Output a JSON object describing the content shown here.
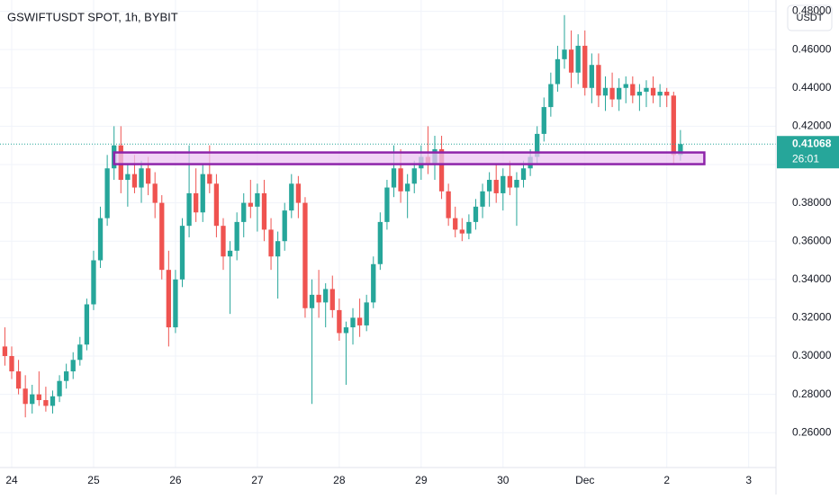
{
  "chart_data": {
    "type": "candlestick",
    "title": "GSWIFTUSDT SPOT, 1h, BYBIT",
    "currency": "USDT",
    "countdown": "26:01",
    "up_color": "#26a69a",
    "down_color": "#ef5350",
    "grid": true,
    "xlim": [
      -3.43,
      224.0
    ],
    "xticks": [
      {
        "value": 0,
        "label": "24"
      },
      {
        "value": 24,
        "label": "25"
      },
      {
        "value": 48,
        "label": "26"
      },
      {
        "value": 72,
        "label": "27"
      },
      {
        "value": 96,
        "label": "28"
      },
      {
        "value": 120,
        "label": "29"
      },
      {
        "value": 144,
        "label": "30"
      },
      {
        "value": 168,
        "label": "Dec"
      },
      {
        "value": 192,
        "label": "2"
      },
      {
        "value": 216,
        "label": "3"
      }
    ],
    "ylim": [
      0.2418,
      0.4859
    ],
    "yticks": [
      {
        "value": 0.26,
        "label": "0.26000"
      },
      {
        "value": 0.28,
        "label": "0.28000"
      },
      {
        "value": 0.3,
        "label": "0.30000"
      },
      {
        "value": 0.32,
        "label": "0.32000"
      },
      {
        "value": 0.34,
        "label": "0.34000"
      },
      {
        "value": 0.36,
        "label": "0.36000"
      },
      {
        "value": 0.38,
        "label": "0.38000"
      },
      {
        "value": 0.4,
        "label": "0.40000"
      },
      {
        "value": 0.42,
        "label": "0.42000"
      },
      {
        "value": 0.44,
        "label": "0.44000"
      },
      {
        "value": 0.46,
        "label": "0.46000"
      },
      {
        "value": 0.48,
        "label": "0.48000"
      }
    ],
    "zone": {
      "low": 0.4002,
      "high": 0.4063,
      "start": 30,
      "end": 203,
      "fill": "#ecc6f2",
      "stroke": "#8e24aa"
    },
    "x": [
      -2,
      0,
      2,
      4,
      6,
      8,
      10,
      12,
      14,
      16,
      18,
      20,
      22,
      24,
      26,
      28,
      30,
      32,
      34,
      36,
      38,
      40,
      42,
      44,
      46,
      48,
      50,
      52,
      54,
      56,
      58,
      60,
      62,
      64,
      66,
      68,
      70,
      72,
      74,
      76,
      78,
      80,
      82,
      84,
      86,
      88,
      90,
      92,
      94,
      96,
      98,
      100,
      102,
      104,
      106,
      108,
      110,
      112,
      114,
      116,
      118,
      120,
      122,
      124,
      126,
      128,
      130,
      132,
      134,
      136,
      138,
      140,
      142,
      144,
      146,
      148,
      150,
      152,
      154,
      156,
      158,
      160,
      162,
      164,
      166,
      168,
      170,
      172,
      174,
      176,
      178,
      180,
      182,
      184,
      186,
      188,
      190,
      192,
      194,
      196
    ],
    "open": [
      0.305,
      0.3,
      0.292,
      0.283,
      0.275,
      0.28,
      0.277,
      0.274,
      0.279,
      0.287,
      0.292,
      0.298,
      0.306,
      0.327,
      0.35,
      0.372,
      0.398,
      0.41,
      0.392,
      0.395,
      0.388,
      0.398,
      0.39,
      0.38,
      0.345,
      0.315,
      0.34,
      0.368,
      0.385,
      0.375,
      0.395,
      0.39,
      0.368,
      0.352,
      0.355,
      0.37,
      0.38,
      0.378,
      0.385,
      0.366,
      0.352,
      0.36,
      0.376,
      0.39,
      0.38,
      0.325,
      0.332,
      0.328,
      0.335,
      0.324,
      0.312,
      0.315,
      0.32,
      0.316,
      0.328,
      0.348,
      0.37,
      0.388,
      0.398,
      0.386,
      0.39,
      0.398,
      0.404,
      0.4,
      0.408,
      0.386,
      0.372,
      0.366,
      0.364,
      0.37,
      0.378,
      0.386,
      0.392,
      0.385,
      0.394,
      0.388,
      0.392,
      0.398,
      0.404,
      0.416,
      0.43,
      0.442,
      0.455,
      0.46,
      0.448,
      0.462,
      0.44,
      0.452,
      0.436,
      0.44,
      0.434,
      0.44,
      0.442,
      0.436,
      0.438,
      0.44,
      0.436,
      0.438,
      0.436,
      0.405
    ],
    "high": [
      0.315,
      0.305,
      0.298,
      0.29,
      0.285,
      0.292,
      0.284,
      0.282,
      0.29,
      0.296,
      0.302,
      0.31,
      0.33,
      0.355,
      0.378,
      0.405,
      0.42,
      0.42,
      0.4,
      0.405,
      0.402,
      0.404,
      0.396,
      0.384,
      0.355,
      0.345,
      0.372,
      0.41,
      0.398,
      0.4,
      0.41,
      0.395,
      0.372,
      0.36,
      0.375,
      0.385,
      0.392,
      0.39,
      0.392,
      0.372,
      0.365,
      0.38,
      0.395,
      0.394,
      0.383,
      0.34,
      0.345,
      0.338,
      0.342,
      0.33,
      0.318,
      0.325,
      0.33,
      0.332,
      0.352,
      0.375,
      0.392,
      0.41,
      0.408,
      0.395,
      0.402,
      0.41,
      0.42,
      0.415,
      0.415,
      0.39,
      0.378,
      0.372,
      0.374,
      0.382,
      0.39,
      0.396,
      0.4,
      0.398,
      0.402,
      0.396,
      0.402,
      0.408,
      0.42,
      0.435,
      0.448,
      0.462,
      0.478,
      0.47,
      0.468,
      0.47,
      0.458,
      0.458,
      0.446,
      0.448,
      0.445,
      0.446,
      0.446,
      0.442,
      0.444,
      0.446,
      0.442,
      0.44,
      0.438,
      0.418
    ],
    "low": [
      0.295,
      0.288,
      0.28,
      0.268,
      0.27,
      0.274,
      0.271,
      0.27,
      0.276,
      0.283,
      0.288,
      0.295,
      0.303,
      0.324,
      0.346,
      0.368,
      0.392,
      0.385,
      0.378,
      0.385,
      0.38,
      0.384,
      0.372,
      0.34,
      0.305,
      0.312,
      0.336,
      0.362,
      0.37,
      0.37,
      0.385,
      0.362,
      0.345,
      0.322,
      0.35,
      0.362,
      0.372,
      0.365,
      0.36,
      0.345,
      0.33,
      0.355,
      0.372,
      0.372,
      0.32,
      0.275,
      0.32,
      0.315,
      0.32,
      0.308,
      0.285,
      0.306,
      0.31,
      0.313,
      0.325,
      0.345,
      0.366,
      0.383,
      0.38,
      0.372,
      0.385,
      0.392,
      0.395,
      0.392,
      0.382,
      0.368,
      0.362,
      0.36,
      0.361,
      0.366,
      0.372,
      0.378,
      0.38,
      0.376,
      0.384,
      0.368,
      0.388,
      0.394,
      0.4,
      0.412,
      0.425,
      0.438,
      0.45,
      0.44,
      0.442,
      0.436,
      0.432,
      0.43,
      0.428,
      0.43,
      0.428,
      0.432,
      0.432,
      0.428,
      0.43,
      0.432,
      0.43,
      0.43,
      0.4,
      0.402
    ],
    "close": [
      0.3,
      0.292,
      0.283,
      0.275,
      0.28,
      0.277,
      0.274,
      0.279,
      0.287,
      0.292,
      0.298,
      0.306,
      0.327,
      0.35,
      0.372,
      0.398,
      0.41,
      0.392,
      0.395,
      0.388,
      0.398,
      0.39,
      0.38,
      0.345,
      0.315,
      0.34,
      0.368,
      0.385,
      0.375,
      0.395,
      0.39,
      0.368,
      0.352,
      0.355,
      0.37,
      0.38,
      0.378,
      0.385,
      0.366,
      0.352,
      0.36,
      0.376,
      0.39,
      0.38,
      0.325,
      0.332,
      0.328,
      0.335,
      0.324,
      0.312,
      0.315,
      0.32,
      0.316,
      0.328,
      0.348,
      0.37,
      0.388,
      0.398,
      0.386,
      0.39,
      0.398,
      0.404,
      0.4,
      0.408,
      0.386,
      0.372,
      0.366,
      0.364,
      0.37,
      0.378,
      0.386,
      0.392,
      0.385,
      0.394,
      0.388,
      0.392,
      0.398,
      0.404,
      0.416,
      0.43,
      0.442,
      0.455,
      0.46,
      0.448,
      0.462,
      0.44,
      0.452,
      0.436,
      0.44,
      0.434,
      0.44,
      0.442,
      0.436,
      0.438,
      0.44,
      0.436,
      0.438,
      0.436,
      0.405,
      0.41068
    ]
  }
}
